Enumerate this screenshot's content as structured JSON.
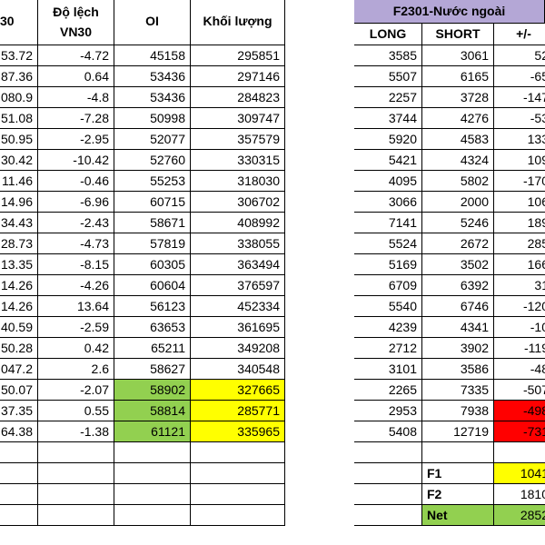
{
  "left_table": {
    "headers": [
      "30",
      "Độ lệch\nVN30",
      "OI",
      "Khối lượng"
    ],
    "rows": [
      [
        "53.72",
        "-4.72",
        "45158",
        "295851"
      ],
      [
        "87.36",
        "0.64",
        "53436",
        "297146"
      ],
      [
        "080.9",
        "-4.8",
        "53436",
        "284823"
      ],
      [
        "51.08",
        "-7.28",
        "50998",
        "309747"
      ],
      [
        "50.95",
        "-2.95",
        "52077",
        "357579"
      ],
      [
        "30.42",
        "-10.42",
        "52760",
        "330315"
      ],
      [
        "11.46",
        "-0.46",
        "55253",
        "318030"
      ],
      [
        "14.96",
        "-6.96",
        "60715",
        "306702"
      ],
      [
        "34.43",
        "-2.43",
        "58671",
        "408992"
      ],
      [
        "28.73",
        "-4.73",
        "57819",
        "338055"
      ],
      [
        "13.35",
        "-8.15",
        "60305",
        "363494"
      ],
      [
        "14.26",
        "-4.26",
        "60604",
        "376597"
      ],
      [
        "14.26",
        "13.64",
        "56123",
        "452334"
      ],
      [
        "40.59",
        "-2.59",
        "63653",
        "361695"
      ],
      [
        "50.28",
        "0.42",
        "65211",
        "349208"
      ],
      [
        "047.2",
        "2.6",
        "58627",
        "340548"
      ],
      [
        "50.07",
        "-2.07",
        "58902",
        "327665"
      ],
      [
        "37.35",
        "0.55",
        "58814",
        "285771"
      ],
      [
        "64.38",
        "-1.38",
        "61121",
        "335965"
      ]
    ]
  },
  "right_table": {
    "title": "F2301-Nước ngoài",
    "headers": [
      "LONG",
      "SHORT",
      "+/-"
    ],
    "rows": [
      [
        "3585",
        "3061",
        "52"
      ],
      [
        "5507",
        "6165",
        "-65"
      ],
      [
        "2257",
        "3728",
        "-147"
      ],
      [
        "3744",
        "4276",
        "-53"
      ],
      [
        "5920",
        "4583",
        "133"
      ],
      [
        "5421",
        "4324",
        "109"
      ],
      [
        "4095",
        "5802",
        "-170"
      ],
      [
        "3066",
        "2000",
        "106"
      ],
      [
        "7141",
        "5246",
        "189"
      ],
      [
        "5524",
        "2672",
        "285"
      ],
      [
        "5169",
        "3502",
        "166"
      ],
      [
        "6709",
        "6392",
        "31"
      ],
      [
        "5540",
        "6746",
        "-120"
      ],
      [
        "4239",
        "4341",
        "-10"
      ],
      [
        "2712",
        "3902",
        "-119"
      ],
      [
        "3101",
        "3586",
        "-48"
      ],
      [
        "2265",
        "7335",
        "-507"
      ],
      [
        "2953",
        "7938",
        "-498"
      ],
      [
        "5408",
        "12719",
        "-731"
      ]
    ],
    "summary": [
      {
        "label": "F1",
        "value": "1041"
      },
      {
        "label": "F2",
        "value": "1810"
      },
      {
        "label": "Net",
        "value": "2852"
      }
    ]
  },
  "colors": {
    "green": "#92d050",
    "yellow": "#ffff00",
    "red": "#ff0000",
    "title_lavender": "#b4a7d6"
  }
}
